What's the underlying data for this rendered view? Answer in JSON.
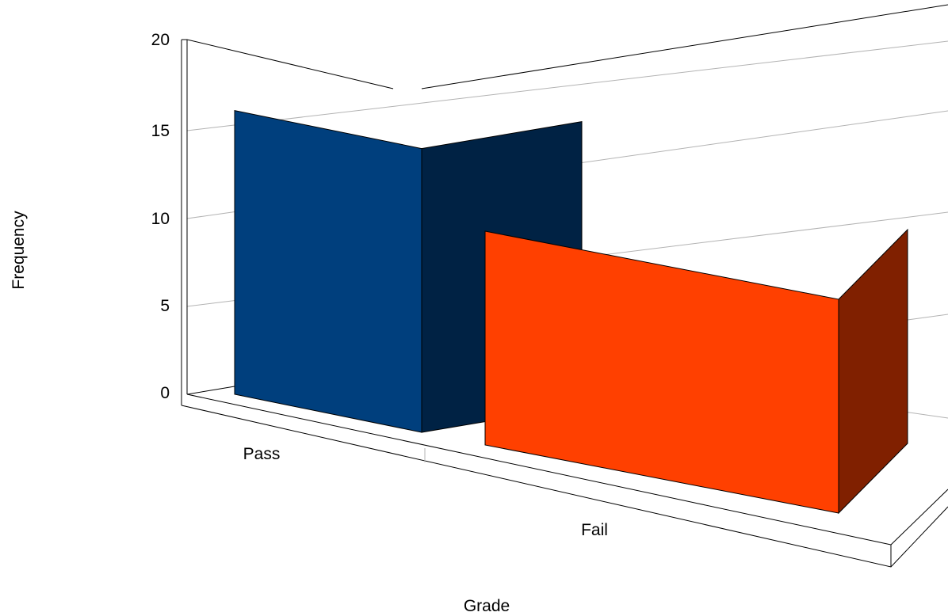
{
  "chart_data": {
    "type": "bar",
    "style": "3d",
    "categories": [
      "Pass",
      "Fail"
    ],
    "values": [
      16,
      9
    ],
    "xlabel": "Grade",
    "ylabel": "Frequency",
    "ylim": [
      0,
      20
    ],
    "yticks": [
      "0",
      "5",
      "10",
      "15",
      "20"
    ],
    "grid": true,
    "colors": {
      "Pass": {
        "front": "#003f7d",
        "side": "#002244"
      },
      "Fail": {
        "front": "#ff4000",
        "side": "#802000"
      }
    }
  }
}
